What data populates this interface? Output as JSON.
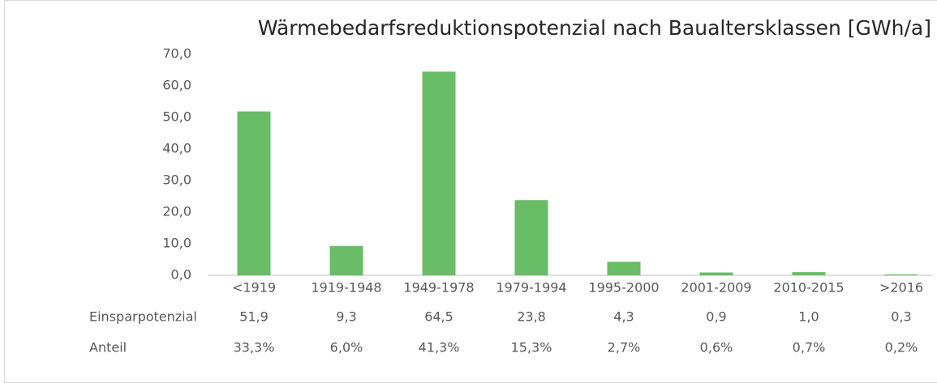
{
  "chart_data": {
    "type": "bar",
    "title": "Wärmebedarfsreduktionspotenzial nach Baualtersklassen [GWh/a]",
    "categories": [
      "<1919",
      "1919-1948",
      "1949-1978",
      "1979-1994",
      "1995-2000",
      "2001-2009",
      "2010-2015",
      ">2016"
    ],
    "series": [
      {
        "name": "Einsparpotenzial",
        "color": "#68bd66",
        "values": [
          51.9,
          9.3,
          64.5,
          23.8,
          4.3,
          0.9,
          1.0,
          0.3
        ],
        "value_labels": [
          "51,9",
          "9,3",
          "64,5",
          "23,8",
          "4,3",
          "0,9",
          "1,0",
          "0,3"
        ]
      }
    ],
    "shares": {
      "name": "Anteil",
      "values": [
        33.3,
        6.0,
        41.3,
        15.3,
        2.7,
        0.6,
        0.7,
        0.2
      ],
      "value_labels": [
        "33,3%",
        "6,0%",
        "41,3%",
        "15,3%",
        "2,7%",
        "0,6%",
        "0,7%",
        "0,2%"
      ]
    },
    "ylim": [
      0,
      70
    ],
    "yticks": [
      {
        "value": 0,
        "label": "0,0"
      },
      {
        "value": 10,
        "label": "10,0"
      },
      {
        "value": 20,
        "label": "20,0"
      },
      {
        "value": 30,
        "label": "30,0"
      },
      {
        "value": 40,
        "label": "40,0"
      },
      {
        "value": 50,
        "label": "50,0"
      },
      {
        "value": 60,
        "label": "60,0"
      },
      {
        "value": 70,
        "label": "70,0"
      }
    ],
    "grid": false
  }
}
